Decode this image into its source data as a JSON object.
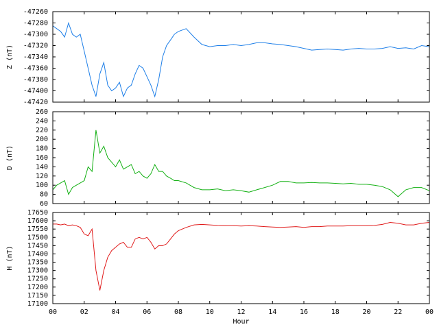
{
  "chart_data": [
    {
      "type": "line",
      "ylabel": "Z (nT)",
      "color": "#1e7fe8",
      "xlim": [
        0,
        24
      ],
      "xticks": [
        0,
        2,
        4,
        6,
        8,
        10,
        12,
        14,
        16,
        18,
        20,
        22,
        24
      ],
      "ylim": [
        -47420,
        -47260
      ],
      "yticks": [
        -47420,
        -47400,
        -47380,
        -47360,
        -47340,
        -47320,
        -47300,
        -47280,
        -47260
      ],
      "x": [
        0,
        0.25,
        0.5,
        0.75,
        1,
        1.25,
        1.5,
        1.75,
        2,
        2.25,
        2.5,
        2.75,
        3,
        3.25,
        3.5,
        3.75,
        4,
        4.25,
        4.5,
        4.75,
        5,
        5.25,
        5.5,
        5.75,
        6,
        6.25,
        6.5,
        6.75,
        7,
        7.25,
        7.5,
        7.75,
        8,
        8.5,
        9,
        9.5,
        10,
        10.5,
        11,
        11.5,
        12,
        12.5,
        13,
        13.5,
        14,
        14.5,
        15,
        15.5,
        16,
        16.5,
        17,
        17.5,
        18,
        18.5,
        19,
        19.5,
        20,
        20.5,
        21,
        21.5,
        22,
        22.5,
        23,
        23.5,
        24
      ],
      "values": [
        -47285,
        -47290,
        -47295,
        -47305,
        -47280,
        -47300,
        -47305,
        -47300,
        -47330,
        -47360,
        -47390,
        -47410,
        -47370,
        -47350,
        -47390,
        -47400,
        -47395,
        -47385,
        -47410,
        -47395,
        -47390,
        -47370,
        -47355,
        -47360,
        -47375,
        -47390,
        -47410,
        -47380,
        -47340,
        -47320,
        -47310,
        -47300,
        -47295,
        -47290,
        -47305,
        -47318,
        -47322,
        -47320,
        -47320,
        -47318,
        -47320,
        -47318,
        -47315,
        -47315,
        -47317,
        -47318,
        -47320,
        -47322,
        -47325,
        -47328,
        -47327,
        -47326,
        -47327,
        -47328,
        -47326,
        -47325,
        -47326,
        -47326,
        -47325,
        -47322,
        -47325,
        -47324,
        -47326,
        -47320,
        -47322
      ]
    },
    {
      "type": "line",
      "ylabel": "D (nT)",
      "color": "#12b012",
      "xlim": [
        0,
        24
      ],
      "xticks": [
        0,
        2,
        4,
        6,
        8,
        10,
        12,
        14,
        16,
        18,
        20,
        22,
        24
      ],
      "ylim": [
        60,
        260
      ],
      "yticks": [
        60,
        80,
        100,
        120,
        140,
        160,
        180,
        200,
        220,
        240,
        260
      ],
      "x": [
        0,
        0.25,
        0.5,
        0.75,
        1,
        1.25,
        1.5,
        1.75,
        2,
        2.25,
        2.5,
        2.75,
        3,
        3.25,
        3.5,
        3.75,
        4,
        4.25,
        4.5,
        4.75,
        5,
        5.25,
        5.5,
        5.75,
        6,
        6.25,
        6.5,
        6.75,
        7,
        7.25,
        7.5,
        7.75,
        8,
        8.5,
        9,
        9.5,
        10,
        10.5,
        11,
        11.5,
        12,
        12.5,
        13,
        13.5,
        14,
        14.5,
        15,
        15.5,
        16,
        16.5,
        17,
        17.5,
        18,
        18.5,
        19,
        19.5,
        20,
        20.5,
        21,
        21.5,
        22,
        22.5,
        23,
        23.5,
        24
      ],
      "values": [
        90,
        100,
        105,
        110,
        80,
        95,
        100,
        105,
        110,
        140,
        130,
        220,
        170,
        185,
        160,
        150,
        140,
        155,
        135,
        140,
        145,
        125,
        130,
        120,
        115,
        125,
        145,
        130,
        130,
        120,
        115,
        110,
        110,
        105,
        95,
        90,
        90,
        92,
        88,
        90,
        88,
        85,
        90,
        95,
        100,
        108,
        108,
        105,
        105,
        106,
        105,
        105,
        104,
        103,
        104,
        102,
        102,
        100,
        97,
        90,
        75,
        90,
        95,
        95,
        88
      ]
    },
    {
      "type": "line",
      "ylabel": "H (nT)",
      "xlabel": "Hour",
      "color": "#e01818",
      "xlim": [
        0,
        24
      ],
      "xticks": [
        {
          "value": 0,
          "label": "00"
        },
        {
          "value": 2,
          "label": "02"
        },
        {
          "value": 4,
          "label": "04"
        },
        {
          "value": 6,
          "label": "06"
        },
        {
          "value": 8,
          "label": "08"
        },
        10,
        12,
        14,
        16,
        18,
        20,
        22,
        {
          "value": 24,
          "label": "00"
        }
      ],
      "ylim": [
        17100,
        17650
      ],
      "yticks": [
        17100,
        17150,
        17200,
        17250,
        17300,
        17350,
        17400,
        17450,
        17500,
        17550,
        17600,
        17650
      ],
      "x": [
        0,
        0.25,
        0.5,
        0.75,
        1,
        1.25,
        1.5,
        1.75,
        2,
        2.25,
        2.5,
        2.75,
        3,
        3.25,
        3.5,
        3.75,
        4,
        4.25,
        4.5,
        4.75,
        5,
        5.25,
        5.5,
        5.75,
        6,
        6.25,
        6.5,
        6.75,
        7,
        7.25,
        7.5,
        7.75,
        8,
        8.5,
        9,
        9.5,
        10,
        10.5,
        11,
        11.5,
        12,
        12.5,
        13,
        13.5,
        14,
        14.5,
        15,
        15.5,
        16,
        16.5,
        17,
        17.5,
        18,
        18.5,
        19,
        19.5,
        20,
        20.5,
        21,
        21.5,
        22,
        22.5,
        23,
        23.5,
        24
      ],
      "values": [
        17580,
        17580,
        17575,
        17580,
        17570,
        17575,
        17570,
        17560,
        17520,
        17510,
        17550,
        17300,
        17180,
        17300,
        17380,
        17420,
        17440,
        17460,
        17470,
        17440,
        17440,
        17490,
        17500,
        17490,
        17500,
        17470,
        17430,
        17450,
        17450,
        17460,
        17490,
        17520,
        17540,
        17560,
        17575,
        17578,
        17575,
        17572,
        17570,
        17570,
        17568,
        17570,
        17568,
        17565,
        17562,
        17560,
        17562,
        17565,
        17560,
        17565,
        17565,
        17568,
        17568,
        17568,
        17570,
        17570,
        17570,
        17572,
        17578,
        17590,
        17585,
        17575,
        17575,
        17585,
        17590
      ]
    }
  ]
}
